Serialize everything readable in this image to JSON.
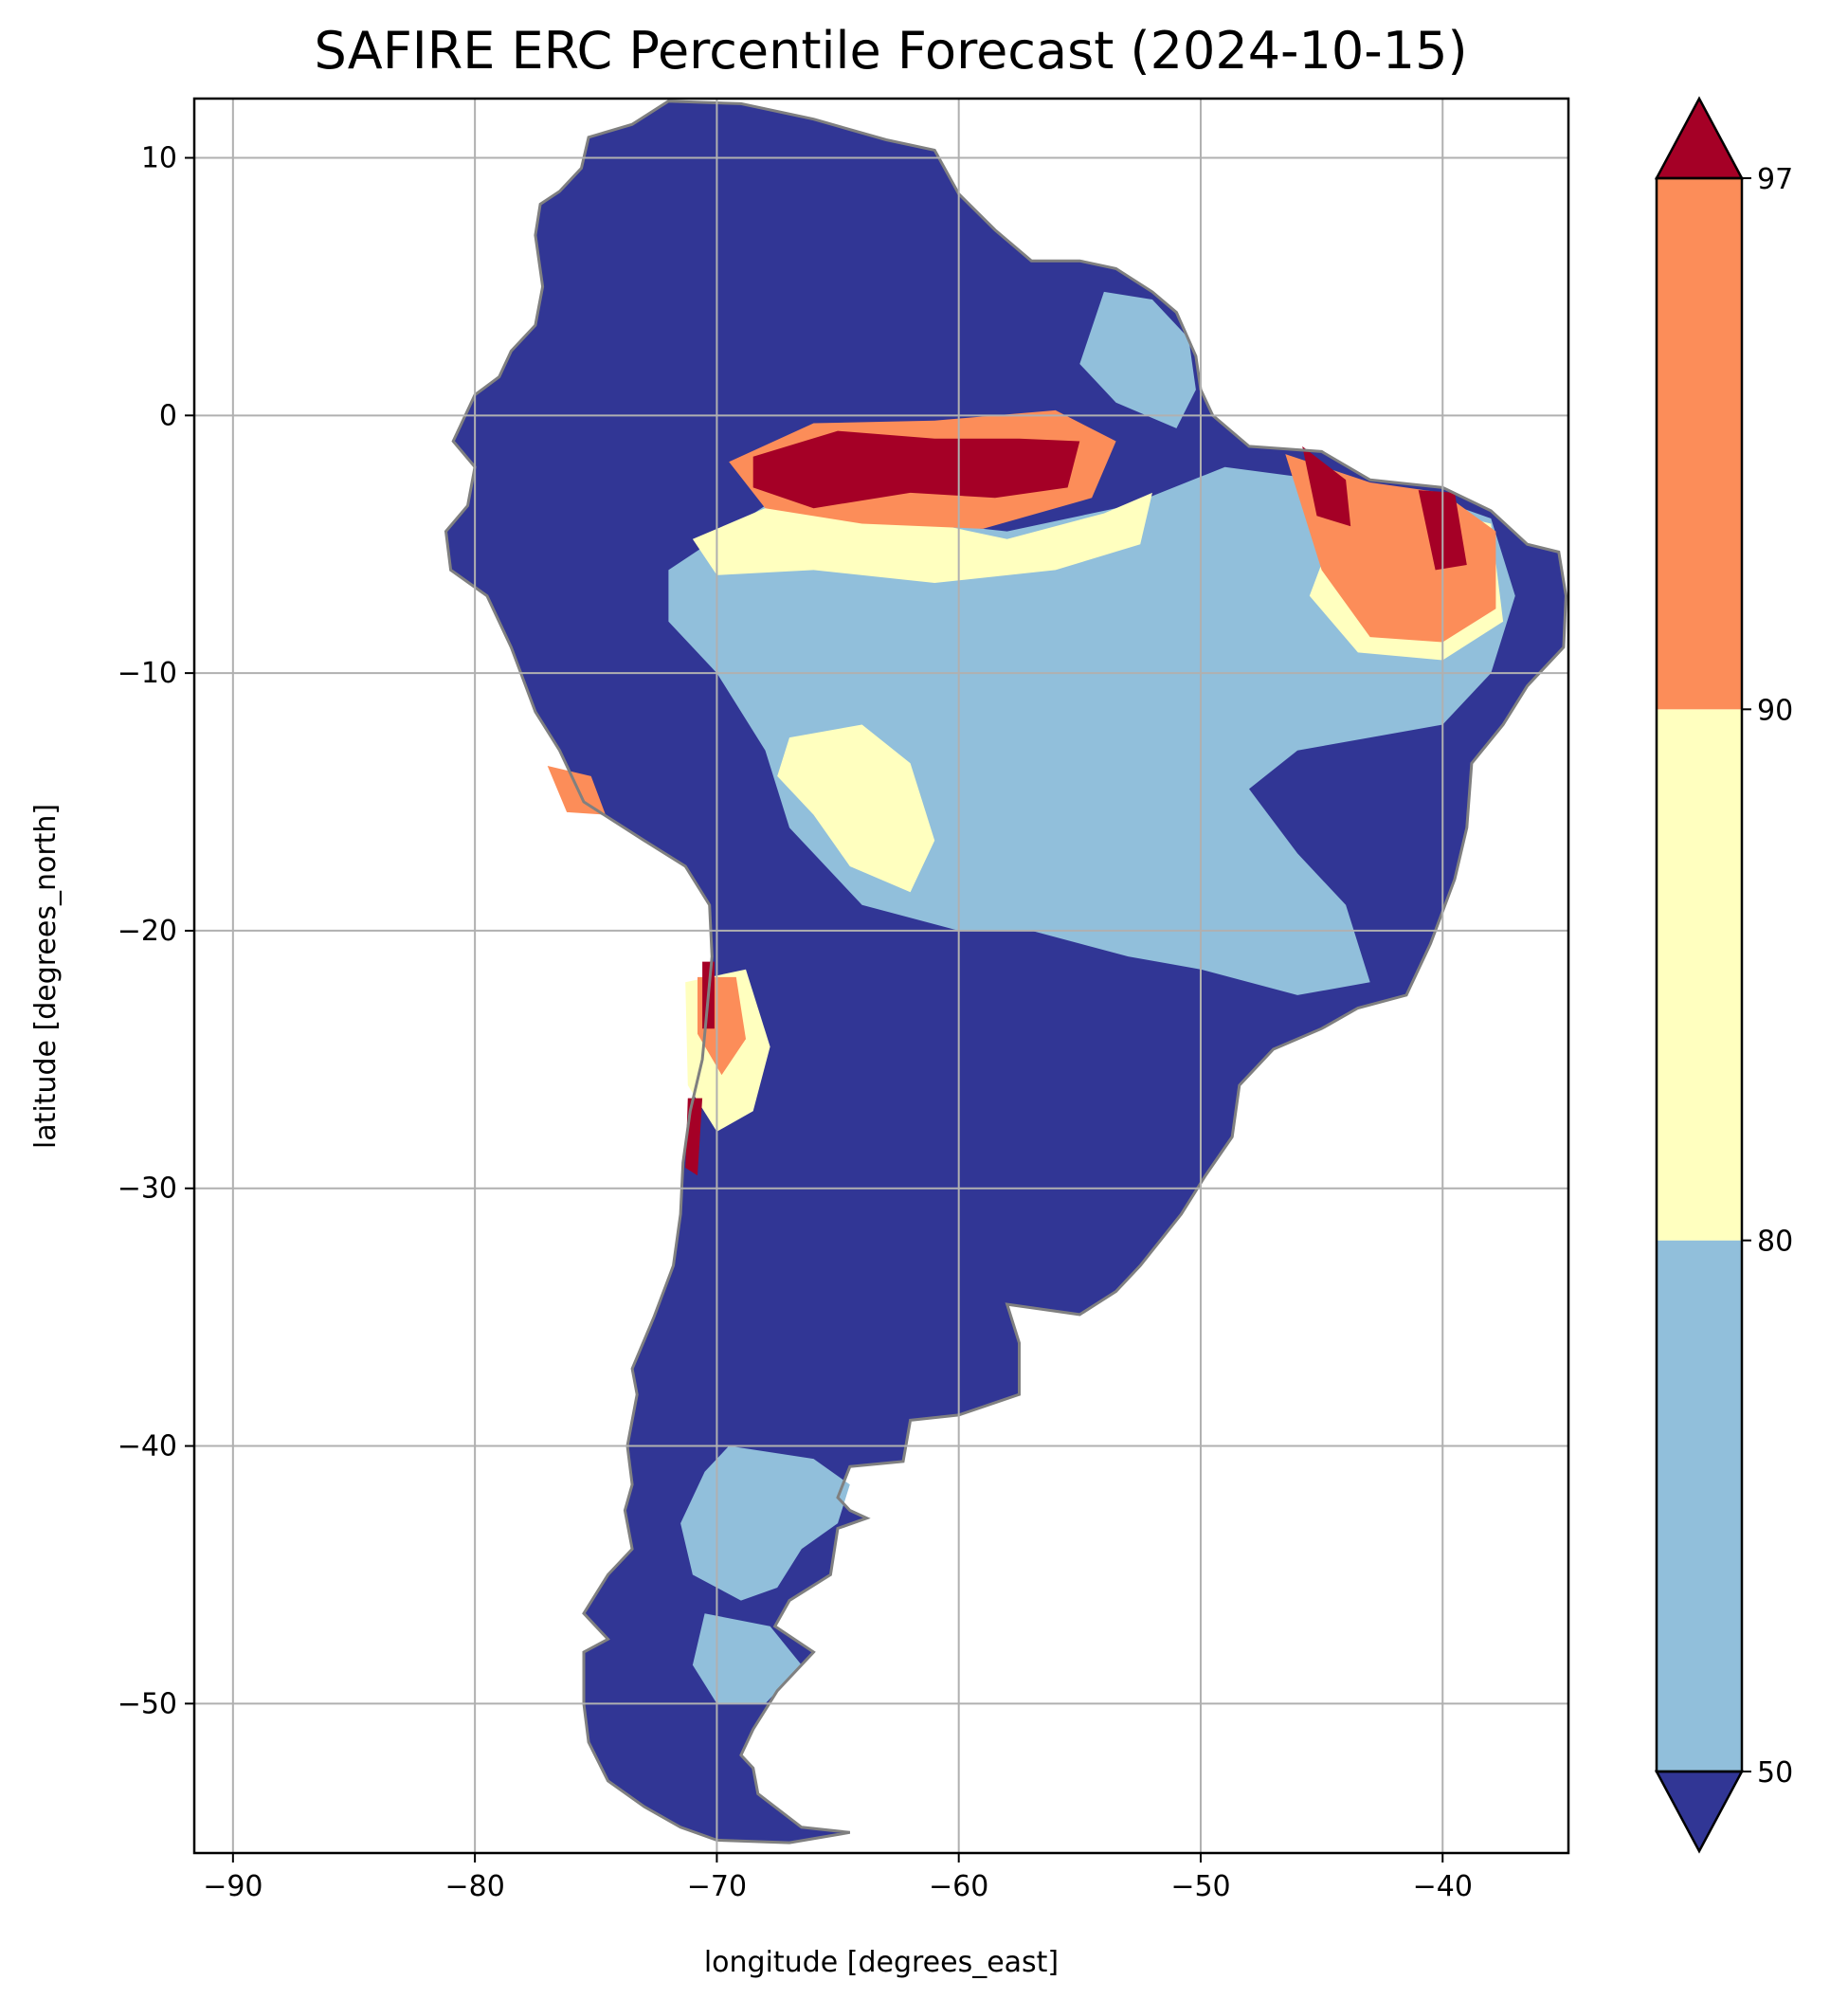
{
  "title": "SAFIRE ERC Percentile Forecast (2024-10-15)",
  "map": {
    "xlabel": "longitude [degrees_east]",
    "ylabel": "latitude [degrees_north]",
    "lon_range": [
      -91.6,
      -34.8
    ],
    "lat_range": [
      -55.8,
      12.3
    ],
    "xticks": [
      {
        "value": -90,
        "label": "−90"
      },
      {
        "value": -80,
        "label": "−80"
      },
      {
        "value": -70,
        "label": "−70"
      },
      {
        "value": -60,
        "label": "−60"
      },
      {
        "value": -50,
        "label": "−50"
      },
      {
        "value": -40,
        "label": "−40"
      }
    ],
    "yticks": [
      {
        "value": 10,
        "label": "10"
      },
      {
        "value": 0,
        "label": "0"
      },
      {
        "value": -10,
        "label": "−10"
      },
      {
        "value": -20,
        "label": "−20"
      },
      {
        "value": -30,
        "label": "−30"
      },
      {
        "value": -40,
        "label": "−40"
      },
      {
        "value": -50,
        "label": "−50"
      }
    ],
    "grid": true,
    "border_color": "#808080",
    "continent_outline": [
      [
        -72,
        12.2
      ],
      [
        -69,
        12.1
      ],
      [
        -66,
        11.5
      ],
      [
        -63,
        10.7
      ],
      [
        -61,
        10.3
      ],
      [
        -60,
        8.6
      ],
      [
        -58.5,
        7.2
      ],
      [
        -57,
        6
      ],
      [
        -55,
        6
      ],
      [
        -53.5,
        5.7
      ],
      [
        -52,
        4.8
      ],
      [
        -51,
        4
      ],
      [
        -50.2,
        2.3
      ],
      [
        -50,
        1
      ],
      [
        -49.5,
        0
      ],
      [
        -48,
        -1.2
      ],
      [
        -45,
        -1.4
      ],
      [
        -43,
        -2.5
      ],
      [
        -40,
        -2.8
      ],
      [
        -38,
        -3.7
      ],
      [
        -36.5,
        -5
      ],
      [
        -35.2,
        -5.3
      ],
      [
        -34.9,
        -7
      ],
      [
        -35,
        -9
      ],
      [
        -36.5,
        -10.5
      ],
      [
        -37.5,
        -12
      ],
      [
        -38.8,
        -13.5
      ],
      [
        -39,
        -16
      ],
      [
        -39.5,
        -18
      ],
      [
        -40.5,
        -20.5
      ],
      [
        -41.5,
        -22.5
      ],
      [
        -43.5,
        -23
      ],
      [
        -45,
        -23.8
      ],
      [
        -47,
        -24.6
      ],
      [
        -48.4,
        -26
      ],
      [
        -48.7,
        -28
      ],
      [
        -49.8,
        -29.5
      ],
      [
        -50.8,
        -31
      ],
      [
        -52.5,
        -33
      ],
      [
        -53.5,
        -34
      ],
      [
        -55,
        -34.9
      ],
      [
        -56.5,
        -34.7
      ],
      [
        -58,
        -34.5
      ],
      [
        -57.5,
        -36
      ],
      [
        -57.5,
        -38
      ],
      [
        -60,
        -38.8
      ],
      [
        -62,
        -39
      ],
      [
        -62.3,
        -40.6
      ],
      [
        -64.5,
        -40.8
      ],
      [
        -65,
        -42
      ],
      [
        -64.5,
        -42.5
      ],
      [
        -63.8,
        -42.8
      ],
      [
        -65,
        -43.2
      ],
      [
        -65.3,
        -45
      ],
      [
        -67,
        -46
      ],
      [
        -67.6,
        -47
      ],
      [
        -66,
        -48
      ],
      [
        -67.5,
        -49.5
      ],
      [
        -68.5,
        -51
      ],
      [
        -69,
        -52
      ],
      [
        -68.5,
        -52.5
      ],
      [
        -68.3,
        -53.5
      ],
      [
        -66.5,
        -54.8
      ],
      [
        -64.5,
        -55
      ],
      [
        -67,
        -55.4
      ],
      [
        -70,
        -55.3
      ],
      [
        -71.5,
        -54.8
      ],
      [
        -73,
        -54
      ],
      [
        -74.5,
        -53
      ],
      [
        -75.3,
        -51.5
      ],
      [
        -75.5,
        -50
      ],
      [
        -75.5,
        -48
      ],
      [
        -74.5,
        -47.5
      ],
      [
        -75.5,
        -46.5
      ],
      [
        -74.5,
        -45
      ],
      [
        -73.5,
        -44
      ],
      [
        -73.8,
        -42.5
      ],
      [
        -73.5,
        -41.5
      ],
      [
        -73.7,
        -40
      ],
      [
        -73.3,
        -38
      ],
      [
        -73.5,
        -37
      ],
      [
        -72.6,
        -35
      ],
      [
        -71.8,
        -33
      ],
      [
        -71.5,
        -31
      ],
      [
        -71.4,
        -29
      ],
      [
        -71.1,
        -27
      ],
      [
        -70.6,
        -25
      ],
      [
        -70.4,
        -23
      ],
      [
        -70.2,
        -21
      ],
      [
        -70.3,
        -19
      ],
      [
        -71.3,
        -17.5
      ],
      [
        -73,
        -16.5
      ],
      [
        -75.5,
        -15
      ],
      [
        -76.5,
        -13
      ],
      [
        -77.5,
        -11.5
      ],
      [
        -78.5,
        -9
      ],
      [
        -79.5,
        -7
      ],
      [
        -81,
        -6
      ],
      [
        -81.2,
        -4.5
      ],
      [
        -80.3,
        -3.5
      ],
      [
        -80,
        -2
      ],
      [
        -80.9,
        -1
      ],
      [
        -80,
        0.8
      ],
      [
        -79,
        1.5
      ],
      [
        -78.5,
        2.5
      ],
      [
        -77.5,
        3.5
      ],
      [
        -77.2,
        5
      ],
      [
        -77.5,
        7
      ],
      [
        -77.3,
        8.2
      ],
      [
        -76.5,
        8.7
      ],
      [
        -75.6,
        9.6
      ],
      [
        -75.3,
        10.8
      ],
      [
        -73.5,
        11.3
      ],
      [
        -72,
        12.2
      ]
    ]
  },
  "colorbar": {
    "ticks": [
      {
        "value": 50,
        "label": "50"
      },
      {
        "value": 80,
        "label": "80"
      },
      {
        "value": 90,
        "label": "90"
      },
      {
        "value": 97,
        "label": "97"
      }
    ],
    "bins": [
      {
        "range": "<50",
        "color": "#313695"
      },
      {
        "range": "50-80",
        "color": "#91bfdb"
      },
      {
        "range": "80-90",
        "color": "#ffffbf"
      },
      {
        "range": "90-97",
        "color": "#fc8d59"
      },
      {
        "range": ">97",
        "color": "#a50026"
      }
    ]
  },
  "regions": [
    {
      "class": "50-80",
      "polygon": [
        [
          -72,
          -6
        ],
        [
          -68,
          -3.5
        ],
        [
          -63,
          -4
        ],
        [
          -58,
          -4.5
        ],
        [
          -53,
          -3.5
        ],
        [
          -49,
          -2
        ],
        [
          -45,
          -2.5
        ],
        [
          -41,
          -3
        ],
        [
          -38,
          -4
        ],
        [
          -37,
          -7
        ],
        [
          -38,
          -10
        ],
        [
          -40,
          -12
        ],
        [
          -43,
          -12.5
        ],
        [
          -46,
          -13
        ],
        [
          -48,
          -14.5
        ],
        [
          -46,
          -17
        ],
        [
          -44,
          -19
        ],
        [
          -43,
          -22
        ],
        [
          -46,
          -22.5
        ],
        [
          -50,
          -21.5
        ],
        [
          -53,
          -21
        ],
        [
          -57,
          -20
        ],
        [
          -60,
          -20
        ],
        [
          -64,
          -19
        ],
        [
          -67,
          -16
        ],
        [
          -68,
          -13
        ],
        [
          -70,
          -10
        ],
        [
          -72,
          -8
        ]
      ]
    },
    {
      "class": "50-80",
      "polygon": [
        [
          -54,
          4.8
        ],
        [
          -52,
          4.5
        ],
        [
          -50.5,
          3
        ],
        [
          -50.2,
          1
        ],
        [
          -51,
          -0.5
        ],
        [
          -53.5,
          0.5
        ],
        [
          -55,
          2
        ]
      ]
    },
    {
      "class": "50-80",
      "polygon": [
        [
          -69.5,
          -40
        ],
        [
          -66,
          -40.5
        ],
        [
          -64.5,
          -41.5
        ],
        [
          -65,
          -43
        ],
        [
          -66.5,
          -44
        ],
        [
          -67.5,
          -45.5
        ],
        [
          -69,
          -46
        ],
        [
          -71,
          -45
        ],
        [
          -71.5,
          -43
        ],
        [
          -70.5,
          -41
        ]
      ]
    },
    {
      "class": "50-80",
      "polygon": [
        [
          -70.5,
          -46.5
        ],
        [
          -67.8,
          -47
        ],
        [
          -66.5,
          -48.5
        ],
        [
          -68,
          -50
        ],
        [
          -70,
          -50
        ],
        [
          -71,
          -48.5
        ]
      ]
    },
    {
      "class": "80-90",
      "polygon": [
        [
          -71,
          -4.8
        ],
        [
          -67,
          -3.2
        ],
        [
          -62,
          -4
        ],
        [
          -58,
          -4.8
        ],
        [
          -54,
          -3.8
        ],
        [
          -52,
          -3
        ],
        [
          -52.5,
          -5
        ],
        [
          -56,
          -6
        ],
        [
          -61,
          -6.5
        ],
        [
          -66,
          -6
        ],
        [
          -70,
          -6.2
        ]
      ]
    },
    {
      "class": "80-90",
      "polygon": [
        [
          -67,
          -12.5
        ],
        [
          -64,
          -12
        ],
        [
          -62,
          -13.5
        ],
        [
          -61,
          -16.5
        ],
        [
          -62,
          -18.5
        ],
        [
          -64.5,
          -17.5
        ],
        [
          -66,
          -15.5
        ],
        [
          -67.5,
          -14
        ]
      ]
    },
    {
      "class": "80-90",
      "polygon": [
        [
          -44.5,
          -4.5
        ],
        [
          -41,
          -3.5
        ],
        [
          -38,
          -4.2
        ],
        [
          -37.5,
          -8
        ],
        [
          -40,
          -9.5
        ],
        [
          -43.5,
          -9.2
        ],
        [
          -45.5,
          -7
        ]
      ]
    },
    {
      "class": "80-90",
      "polygon": [
        [
          -71.3,
          -22
        ],
        [
          -68.8,
          -21.5
        ],
        [
          -67.8,
          -24.5
        ],
        [
          -68.5,
          -27
        ],
        [
          -70,
          -27.8
        ],
        [
          -71.2,
          -26
        ]
      ]
    },
    {
      "class": "90-97",
      "polygon": [
        [
          -69.5,
          -1.8
        ],
        [
          -66,
          -0.3
        ],
        [
          -61,
          -0.2
        ],
        [
          -56,
          0.2
        ],
        [
          -53.5,
          -1
        ],
        [
          -54.5,
          -3.2
        ],
        [
          -59,
          -4.4
        ],
        [
          -64,
          -4.2
        ],
        [
          -68,
          -3.6
        ]
      ]
    },
    {
      "class": "90-97",
      "polygon": [
        [
          -46.5,
          -1.5
        ],
        [
          -43,
          -2.6
        ],
        [
          -40,
          -3
        ],
        [
          -37.8,
          -4.5
        ],
        [
          -37.8,
          -7.5
        ],
        [
          -40,
          -8.8
        ],
        [
          -43,
          -8.6
        ],
        [
          -45,
          -6
        ]
      ]
    },
    {
      "class": "90-97",
      "polygon": [
        [
          -70.8,
          -21.8
        ],
        [
          -69.2,
          -21.8
        ],
        [
          -68.8,
          -24.2
        ],
        [
          -69.8,
          -25.6
        ],
        [
          -70.8,
          -24
        ]
      ]
    },
    {
      "class": "90-97",
      "polygon": [
        [
          -77,
          -13.6
        ],
        [
          -75.2,
          -14
        ],
        [
          -74.6,
          -15.5
        ],
        [
          -76.2,
          -15.4
        ]
      ]
    },
    {
      "class": ">97",
      "polygon": [
        [
          -68.5,
          -1.6
        ],
        [
          -65,
          -0.6
        ],
        [
          -61,
          -0.9
        ],
        [
          -57.5,
          -0.9
        ],
        [
          -55,
          -1
        ],
        [
          -55.5,
          -2.8
        ],
        [
          -58.5,
          -3.2
        ],
        [
          -62,
          -3
        ],
        [
          -66,
          -3.6
        ],
        [
          -68.5,
          -2.8
        ]
      ]
    },
    {
      "class": ">97",
      "polygon": [
        [
          -45.8,
          -1.2
        ],
        [
          -44,
          -2.5
        ],
        [
          -43.8,
          -4.3
        ],
        [
          -45.2,
          -3.9
        ]
      ]
    },
    {
      "class": ">97",
      "polygon": [
        [
          -41,
          -2.9
        ],
        [
          -39.5,
          -3
        ],
        [
          -39,
          -5.8
        ],
        [
          -40.3,
          -6
        ]
      ]
    },
    {
      "class": ">97",
      "polygon": [
        [
          -70.6,
          -21.2
        ],
        [
          -70.1,
          -21.2
        ],
        [
          -70.1,
          -23.8
        ],
        [
          -70.6,
          -23.8
        ]
      ]
    },
    {
      "class": ">97",
      "polygon": [
        [
          -71.2,
          -26.5
        ],
        [
          -70.6,
          -26.5
        ],
        [
          -70.8,
          -29.5
        ],
        [
          -71.3,
          -29.2
        ]
      ]
    }
  ]
}
